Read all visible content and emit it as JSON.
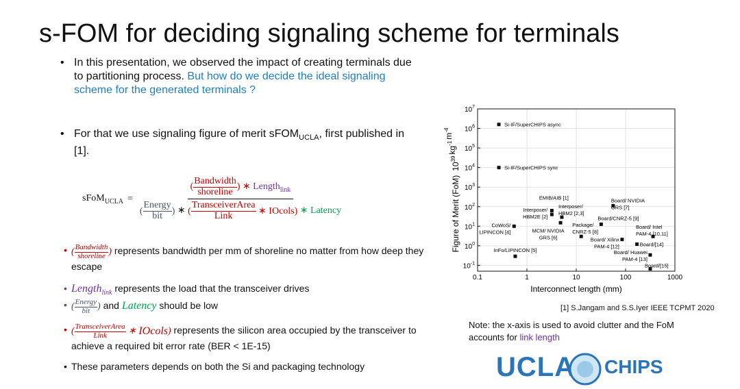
{
  "header": {
    "title": "s-FOM for deciding signaling scheme for terminals"
  },
  "bullets_top": [
    {
      "segments": [
        "In this presentation, we observed the impact of creating terminals due to partitioning process. ",
        "But how do we decide the ideal signaling scheme for the generated terminals ?"
      ]
    },
    {
      "segments": [
        "For that we use signaling figure of merit sFOM",
        "UCLA",
        ", first published in [1]."
      ]
    }
  ],
  "formula": {
    "lhs": "sFoM",
    "lhs_sub": "UCLA",
    "eq": "=",
    "bw": "Bandwidth",
    "shore": "shoreline",
    "times": "∗",
    "length": "Length",
    "link_sub": "link",
    "energy": "Energy",
    "bit": "bit",
    "ta": "TransceiverArea",
    "link": "Link",
    "iocols": "IOcols",
    "plus_latency": "Latency"
  },
  "bullets_bottom": [
    " represents bandwidth per mm of shoreline no matter from how deep they escape",
    " represents the load that the transceiver drives",
    " and ",
    " should be low",
    " represents the silicon area occupied by the transceiver to achieve a required bit error rate (BER < 1E-15)",
    "These parameters depends on both the Si and packaging technology"
  ],
  "chart_data": {
    "type": "scatter",
    "xlabel": "Interconnect length (mm)",
    "ylabel": "Figure of Merit (FoM)",
    "y_unit": [
      {
        "base": "10",
        "sup": "39"
      },
      {
        "base": "kg",
        "sup": "-1"
      },
      {
        "base": "m",
        "sup": "-4"
      }
    ],
    "log_x": true,
    "log_y": true,
    "grid": true,
    "color": "#111111",
    "xlim": [
      0.1,
      1000
    ],
    "xticks": [
      0.1,
      1,
      10,
      100,
      1000
    ],
    "ylim": [
      0.05,
      10000000
    ],
    "yticks": [
      {
        "value": 0.1,
        "label": "10",
        "power": "-1"
      },
      {
        "value": 1,
        "label": "10",
        "power": "0"
      },
      {
        "value": 10,
        "label": "10",
        "power": "1"
      },
      {
        "value": 100,
        "label": "10",
        "power": "2"
      },
      {
        "value": 1000,
        "label": "10",
        "power": "3"
      },
      {
        "value": 10000,
        "label": "10",
        "power": "4"
      },
      {
        "value": 100000,
        "label": "10",
        "power": "5"
      },
      {
        "value": 1000000,
        "label": "10",
        "power": "6"
      },
      {
        "value": 10000000,
        "label": "10",
        "power": "7"
      }
    ],
    "x": [
      0.27,
      0.27,
      3.2,
      3.2,
      5.1,
      4.8,
      0.55,
      12.6,
      32,
      56,
      85,
      360,
      170,
      316,
      316,
      0.58
    ],
    "y": [
      1600000,
      10000,
      63,
      40,
      29,
      15,
      10,
      3,
      12.6,
      112,
      2.1,
      3,
      1.2,
      0.34,
      0.066,
      0.29
    ],
    "labels": [
      [
        "Si-IF/SuperCHIPS async"
      ],
      [
        "Si-IF/SuperCHIPS sync"
      ],
      [
        "EMIB/AIB [1]"
      ],
      [
        "Interposer/",
        "HBM2E [2]"
      ],
      [
        "Interposer/",
        "HBM2 [2,3]"
      ],
      [
        "MCM/ NVIDIA",
        "GRS [6]"
      ],
      [
        "CoWoS/",
        "LIPINCON [4]"
      ],
      [
        "Package/",
        "CNRZ-5 [8]"
      ],
      [
        "Board/CNRZ-5 [9]"
      ],
      [
        "Board/ NVIDIA",
        "GRS [7]"
      ],
      [
        "Board/ Xilinx",
        "PAM-4 [12]"
      ],
      [
        "Board/ Intel",
        "PAM-4 [10,11]"
      ],
      [
        "Board/[14]"
      ],
      [
        "Board/ Huawei",
        "PAM-4 [13]"
      ],
      [
        "Board/[15]"
      ],
      [
        "InFo/LIPINCON [5]"
      ]
    ]
  },
  "citation": "[1] S.Jangam and S.S.Iyer IEEE TCPMT 2020",
  "note": {
    "segments": [
      "Note: the x-axis is used to avoid clutter and the FoM accounts for ",
      "link length"
    ]
  },
  "logo": {
    "left": "UCLA",
    "right": "CHIPS"
  }
}
